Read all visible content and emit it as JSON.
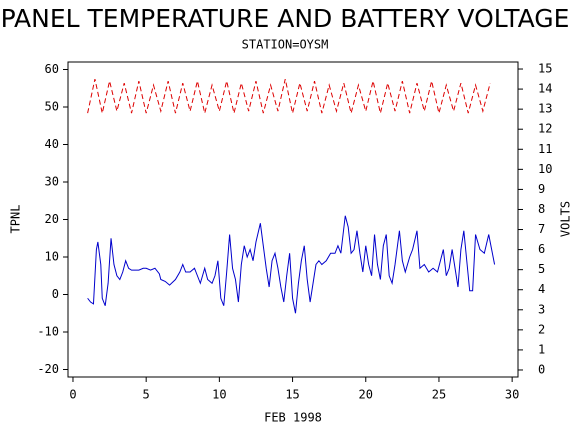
{
  "chart_data": {
    "type": "line",
    "title": "PANEL TEMPERATURE AND BATTERY VOLTAGE",
    "subtitle": "STATION=OYSM",
    "x_label": "FEB 1998",
    "y_label": "TPNL",
    "y2_label": "VOLTS",
    "xlim": [
      -0.34,
      30.4
    ],
    "xticks": [
      0,
      5,
      10,
      15,
      20,
      25,
      30
    ],
    "ylim": [
      -22,
      62
    ],
    "yticks": [
      -20,
      -10,
      0,
      10,
      20,
      30,
      40,
      50,
      60
    ],
    "y2lim": [
      -0.35,
      15.35
    ],
    "y2ticks": [
      0,
      1,
      2,
      3,
      4,
      5,
      6,
      7,
      8,
      9,
      10,
      11,
      12,
      13,
      14,
      15
    ],
    "series": [
      {
        "name": "TPNL",
        "color": "#0000cc",
        "dashed": false,
        "x": [
          1.0,
          1.2,
          1.4,
          1.6,
          1.7,
          1.9,
          2.0,
          2.2,
          2.4,
          2.6,
          2.8,
          3.0,
          3.2,
          3.4,
          3.6,
          3.8,
          4.0,
          4.5,
          4.8,
          5.0,
          5.3,
          5.6,
          5.9,
          6.0,
          6.3,
          6.6,
          7.0,
          7.3,
          7.5,
          7.7,
          8.0,
          8.3,
          8.5,
          8.7,
          9.0,
          9.2,
          9.5,
          9.7,
          9.9,
          10.1,
          10.3,
          10.5,
          10.7,
          10.9,
          11.1,
          11.3,
          11.5,
          11.7,
          11.9,
          12.1,
          12.3,
          12.5,
          12.8,
          13.0,
          13.2,
          13.4,
          13.6,
          13.8,
          14.0,
          14.2,
          14.4,
          14.6,
          14.8,
          15.0,
          15.2,
          15.4,
          15.6,
          15.8,
          16.0,
          16.2,
          16.4,
          16.6,
          16.8,
          17.0,
          17.3,
          17.6,
          17.9,
          18.1,
          18.3,
          18.6,
          18.8,
          19.0,
          19.2,
          19.4,
          19.6,
          19.8,
          20.0,
          20.2,
          20.4,
          20.6,
          20.8,
          21.0,
          21.2,
          21.4,
          21.6,
          21.8,
          22.0,
          22.3,
          22.5,
          22.7,
          23.0,
          23.2,
          23.5,
          23.7,
          24.0,
          24.3,
          24.6,
          24.9,
          25.1,
          25.3,
          25.5,
          25.7,
          25.9,
          26.1,
          26.3,
          26.5,
          26.7,
          26.9,
          27.1,
          27.3,
          27.5,
          27.8,
          28.1,
          28.4,
          28.6,
          28.8
        ],
        "values": [
          -1,
          -2,
          -2.5,
          12,
          14,
          8,
          -1,
          -3,
          3,
          15,
          8,
          5,
          4,
          6,
          9,
          7,
          6.5,
          6.5,
          7,
          7,
          6.5,
          7,
          5.5,
          4,
          3.5,
          2.5,
          4,
          6,
          8,
          6,
          6,
          7,
          5,
          3,
          7,
          4,
          3,
          5,
          9,
          -1,
          -3,
          6,
          16,
          7,
          4,
          -2,
          8,
          13,
          10,
          12,
          9,
          14,
          19,
          13,
          7,
          2,
          9,
          11,
          7,
          2,
          -2,
          5,
          11,
          -1,
          -5,
          3,
          9,
          13,
          4,
          -2,
          3,
          8,
          9,
          8,
          9,
          11,
          11,
          13,
          11,
          21,
          18,
          11,
          12,
          17,
          11,
          6,
          13,
          8,
          5,
          16,
          8,
          4,
          13,
          16,
          5,
          3,
          8,
          17,
          9,
          6,
          10,
          12,
          17,
          7,
          8,
          6,
          7,
          6,
          9,
          12,
          5,
          7,
          12,
          7,
          2,
          12,
          17,
          9,
          1,
          1,
          16,
          12,
          11,
          16,
          12,
          8
        ]
      },
      {
        "name": "VOLTS",
        "color": "#dd0000",
        "dashed": true,
        "axis": "y2",
        "x": [
          1.0,
          1.5,
          2.0,
          2.5,
          3.0,
          3.5,
          4.0,
          4.5,
          5.0,
          5.5,
          6.0,
          6.5,
          7.0,
          7.5,
          8.0,
          8.5,
          9.0,
          9.5,
          10.0,
          10.5,
          11.0,
          11.5,
          12.0,
          12.5,
          13.0,
          13.5,
          14.0,
          14.5,
          15.0,
          15.5,
          16.0,
          16.5,
          17.0,
          17.5,
          18.0,
          18.5,
          19.0,
          19.5,
          20.0,
          20.5,
          21.0,
          21.5,
          22.0,
          22.5,
          23.0,
          23.5,
          24.0,
          24.5,
          25.0,
          25.5,
          26.0,
          26.5,
          27.0,
          27.5,
          28.0,
          28.5
        ],
        "values": [
          12.8,
          14.5,
          12.8,
          14.4,
          12.9,
          14.3,
          12.8,
          14.4,
          12.8,
          14.2,
          12.9,
          14.4,
          12.8,
          14.3,
          12.9,
          14.4,
          12.8,
          14.2,
          12.9,
          14.4,
          12.8,
          14.3,
          12.9,
          14.4,
          12.8,
          14.2,
          12.9,
          14.5,
          12.8,
          14.3,
          12.9,
          14.4,
          12.8,
          14.2,
          12.9,
          14.3,
          12.8,
          14.2,
          12.9,
          14.4,
          12.8,
          14.3,
          12.9,
          14.4,
          12.8,
          14.3,
          12.9,
          14.4,
          12.8,
          14.2,
          12.9,
          14.3,
          12.8,
          14.2,
          12.9,
          14.3
        ]
      }
    ]
  }
}
